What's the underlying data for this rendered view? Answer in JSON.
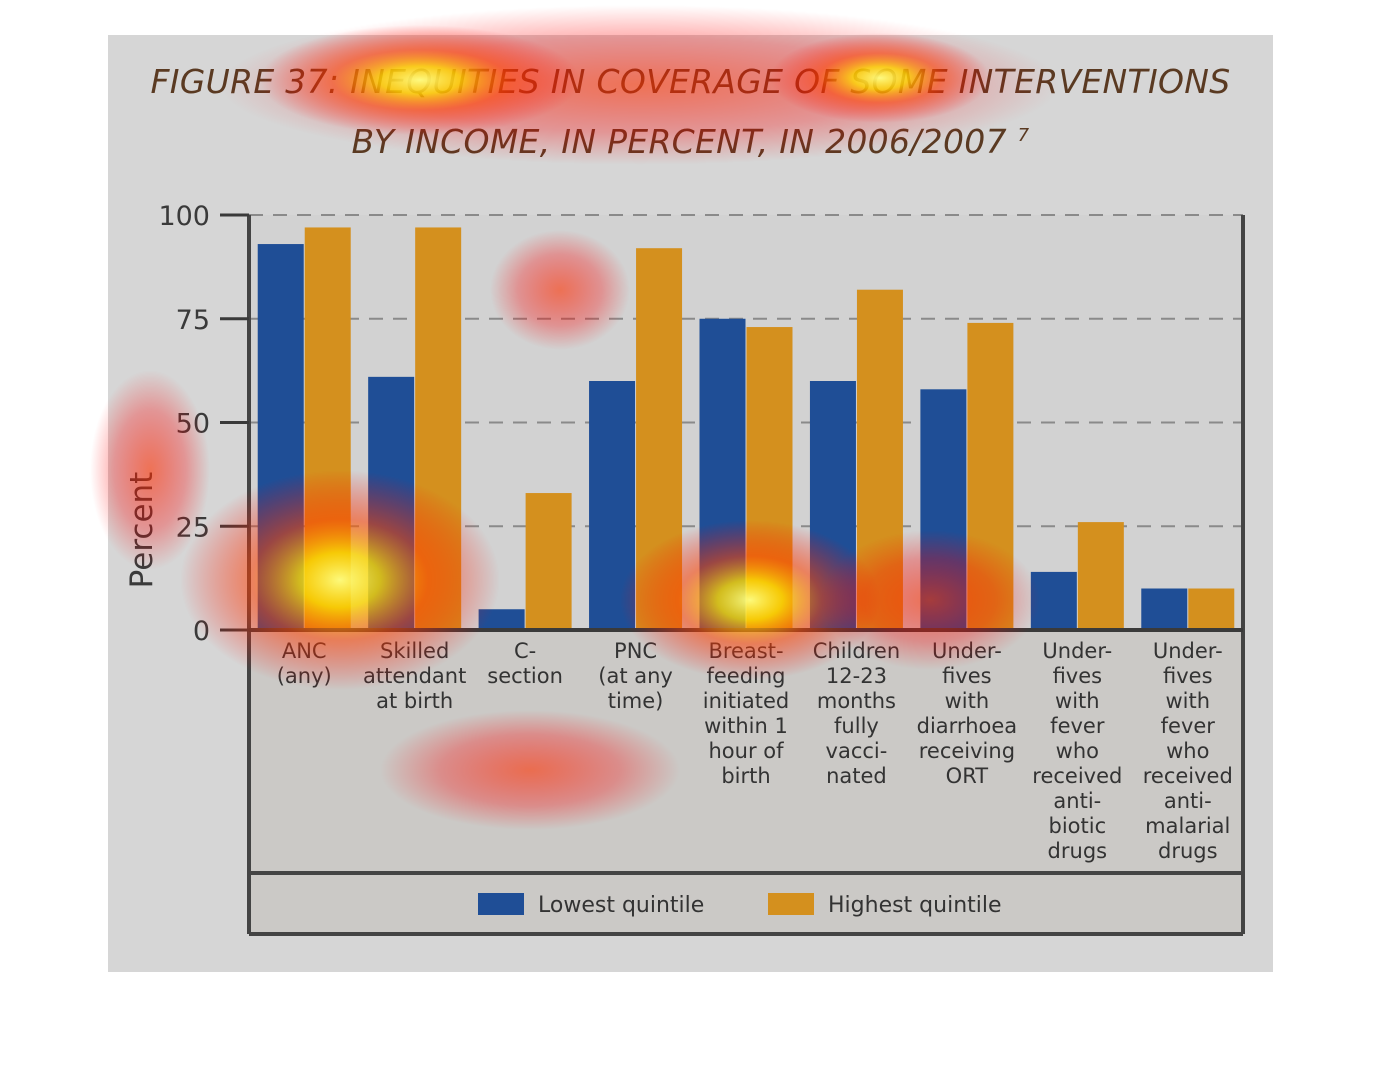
{
  "chart_data": {
    "type": "bar",
    "title": "FIGURE 37: INEQUITIES IN COVERAGE OF SOME INTERVENTIONS BY INCOME, IN PERCENT, IN 2006/2007",
    "title_line1": "FIGURE 37: INEQUITIES IN COVERAGE OF SOME INTERVENTIONS",
    "title_line2": "BY INCOME, IN PERCENT, IN 2006/2007",
    "title_footnote": "7",
    "ylabel": "Percent",
    "xlabel": "",
    "ylim": [
      0,
      100
    ],
    "yticks": [
      0,
      25,
      50,
      75,
      100
    ],
    "grid": true,
    "legend_position": "bottom",
    "categories": [
      [
        "ANC",
        "(any)"
      ],
      [
        "Skilled",
        "attendant",
        "at birth"
      ],
      [
        "C-",
        "section"
      ],
      [
        "PNC",
        "(at any",
        "time)"
      ],
      [
        "Breast-",
        "feeding",
        "initiated",
        "within 1",
        "hour of",
        "birth"
      ],
      [
        "Children",
        "12-23",
        "months",
        "fully",
        "vacci-",
        "nated"
      ],
      [
        "Under-",
        "fives",
        "with",
        "diarrhoea",
        "receiving",
        "ORT"
      ],
      [
        "Under-",
        "fives",
        "with",
        "fever",
        "who",
        "received",
        "anti-",
        "biotic",
        "drugs"
      ],
      [
        "Under-",
        "fives",
        "with",
        "fever",
        "who",
        "received",
        "anti-",
        "malarial",
        "drugs"
      ]
    ],
    "series": [
      {
        "name": "Lowest quintile",
        "color": "#1f4e96",
        "values": [
          93,
          61,
          5,
          60,
          75,
          60,
          58,
          14,
          10
        ]
      },
      {
        "name": "Highest quintile",
        "color": "#d4901e",
        "values": [
          97,
          97,
          33,
          92,
          73,
          82,
          74,
          26,
          10
        ]
      }
    ]
  },
  "colors": {
    "background": "#d6d6d6",
    "frame": "#444444",
    "title": "#5a3a22"
  }
}
